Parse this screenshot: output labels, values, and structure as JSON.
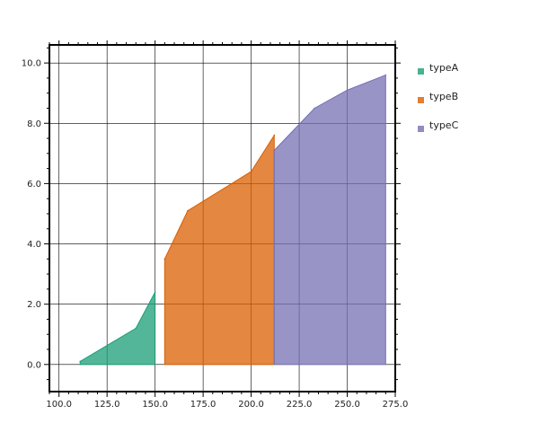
{
  "chart_data": {
    "type": "area",
    "xlim": [
      95,
      275
    ],
    "ylim": [
      -0.9,
      10.6
    ],
    "x_ticks": [
      100,
      125,
      150,
      175,
      200,
      225,
      250,
      275
    ],
    "x_tick_labels": [
      "100.0",
      "125.0",
      "150.0",
      "175.0",
      "200.0",
      "225.0",
      "250.0",
      "275.0"
    ],
    "y_ticks": [
      0,
      2,
      4,
      6,
      8,
      10
    ],
    "y_tick_labels": [
      "0.0",
      "2.0",
      "4.0",
      "6.0",
      "8.0",
      "10.0"
    ],
    "grid": true,
    "legend_position": "right",
    "series": [
      {
        "name": "typeA",
        "color": "#1b9e77",
        "x": [
          111,
          140,
          150
        ],
        "y": [
          0.1,
          1.2,
          2.4
        ]
      },
      {
        "name": "typeB",
        "color": "#d95f02",
        "x": [
          155,
          167,
          200,
          212
        ],
        "y": [
          3.5,
          5.1,
          6.4,
          7.6
        ]
      },
      {
        "name": "typeC",
        "color": "#7570b3",
        "x": [
          212,
          233,
          250,
          270
        ],
        "y": [
          7.1,
          8.5,
          9.1,
          9.6
        ]
      }
    ]
  }
}
